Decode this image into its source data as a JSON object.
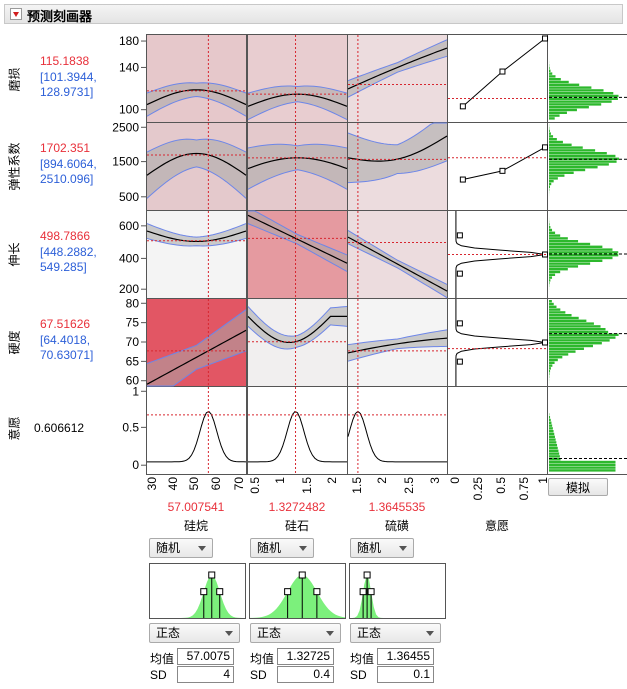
{
  "title": "预测刻画器",
  "responses": [
    {
      "name": "磨损",
      "value": "115.1838",
      "ci": "[101.3944,",
      "ci2": "128.9731]",
      "ticks": [
        "180",
        "140",
        "100"
      ]
    },
    {
      "name": "弹性系数",
      "value": "1702.351",
      "ci": "[894.6064,",
      "ci2": "2510.096]",
      "ticks": [
        "2500",
        "1500",
        "500"
      ]
    },
    {
      "name": "伸长",
      "value": "498.7866",
      "ci": "[448.2882,",
      "ci2": "549.285]",
      "ticks": [
        "600",
        "400",
        "200"
      ]
    },
    {
      "name": "硬度",
      "value": "67.51626",
      "ci": "[64.4018,",
      "ci2": "70.63071]",
      "ticks": [
        "80",
        "75",
        "70",
        "65",
        "60"
      ]
    },
    {
      "name": "意愿",
      "value": "0.606612",
      "ticks": [
        "1",
        "0.5",
        "0"
      ]
    }
  ],
  "factors": [
    {
      "name": "硅烷",
      "value": "57.007541",
      "ticks": [
        "30",
        "40",
        "50",
        "60",
        "70"
      ],
      "dist_type": "随机",
      "dist": "正态",
      "mean_label": "均值",
      "mean": "57.0075",
      "sd_label": "SD",
      "sd": "4"
    },
    {
      "name": "硅石",
      "value": "1.3272482",
      "ticks": [
        "0.5",
        "1",
        "1.5",
        "2"
      ],
      "dist_type": "随机",
      "dist": "正态",
      "mean_label": "均值",
      "mean": "1.32725",
      "sd_label": "SD",
      "sd": "0.4"
    },
    {
      "name": "硫磺",
      "value": "1.3645535",
      "ticks": [
        "1.5",
        "2",
        "2.5",
        "3"
      ],
      "dist_type": "随机",
      "dist": "正态",
      "mean_label": "均值",
      "mean": "1.36455",
      "sd_label": "SD",
      "sd": "0.1"
    }
  ],
  "desirability": {
    "name": "意愿",
    "ticks": [
      "0",
      "0.25",
      "0.5",
      "0.75",
      "1"
    ]
  },
  "simulate_label": "模拟",
  "colors": {
    "red_dash": "#d7262f",
    "curve": "#000000",
    "ci_fill": "#a8a8a8",
    "ci_edge": "#6d86e8",
    "hist": "#2db82d",
    "sim_hist": "#7cf07c"
  }
}
